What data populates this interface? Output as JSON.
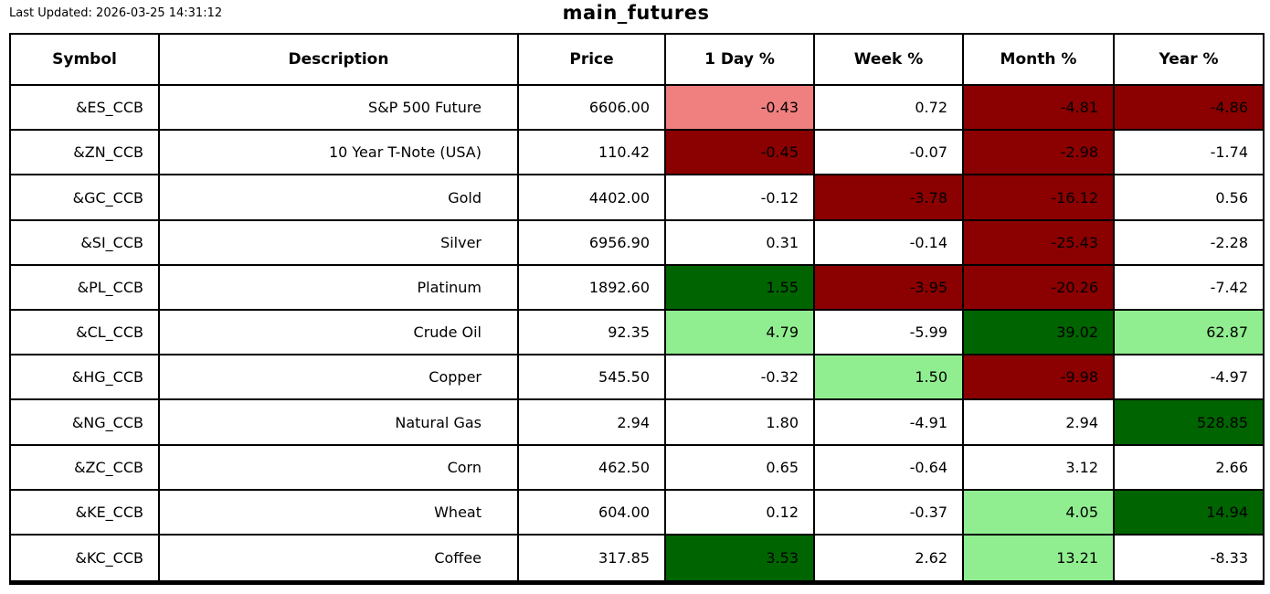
{
  "header": {
    "last_updated": "Last Updated: 2026-03-25 14:31:12",
    "title": "main_futures"
  },
  "chart_data": {
    "type": "table",
    "title": "main_futures",
    "columns": [
      "Symbol",
      "Description",
      "Price",
      "1 Day %",
      "Week %",
      "Month %",
      "Year %"
    ],
    "colors": {
      "strong_gain": "#006400",
      "mild_gain": "#90EE90",
      "mild_loss": "#F08080",
      "strong_loss": "#8B0000",
      "neutral": "#FFFFFF"
    },
    "rows": [
      {
        "symbol": "&ES_CCB",
        "description": "S&P 500 Future",
        "price": "6606.00",
        "percents": [
          {
            "value": "-0.43",
            "bg": "#F08080"
          },
          {
            "value": "0.72",
            "bg": "#FFFFFF"
          },
          {
            "value": "-4.81",
            "bg": "#8B0000"
          },
          {
            "value": "-4.86",
            "bg": "#8B0000"
          }
        ]
      },
      {
        "symbol": "&ZN_CCB",
        "description": "10 Year T-Note (USA)",
        "price": "110.42",
        "percents": [
          {
            "value": "-0.45",
            "bg": "#8B0000"
          },
          {
            "value": "-0.07",
            "bg": "#FFFFFF"
          },
          {
            "value": "-2.98",
            "bg": "#8B0000"
          },
          {
            "value": "-1.74",
            "bg": "#FFFFFF"
          }
        ]
      },
      {
        "symbol": "&GC_CCB",
        "description": "Gold",
        "price": "4402.00",
        "percents": [
          {
            "value": "-0.12",
            "bg": "#FFFFFF"
          },
          {
            "value": "-3.78",
            "bg": "#8B0000"
          },
          {
            "value": "-16.12",
            "bg": "#8B0000"
          },
          {
            "value": "0.56",
            "bg": "#FFFFFF"
          }
        ]
      },
      {
        "symbol": "&SI_CCB",
        "description": "Silver",
        "price": "6956.90",
        "percents": [
          {
            "value": "0.31",
            "bg": "#FFFFFF"
          },
          {
            "value": "-0.14",
            "bg": "#FFFFFF"
          },
          {
            "value": "-25.43",
            "bg": "#8B0000"
          },
          {
            "value": "-2.28",
            "bg": "#FFFFFF"
          }
        ]
      },
      {
        "symbol": "&PL_CCB",
        "description": "Platinum",
        "price": "1892.60",
        "percents": [
          {
            "value": "1.55",
            "bg": "#006400"
          },
          {
            "value": "-3.95",
            "bg": "#8B0000"
          },
          {
            "value": "-20.26",
            "bg": "#8B0000"
          },
          {
            "value": "-7.42",
            "bg": "#FFFFFF"
          }
        ]
      },
      {
        "symbol": "&CL_CCB",
        "description": "Crude Oil",
        "price": "92.35",
        "percents": [
          {
            "value": "4.79",
            "bg": "#90EE90"
          },
          {
            "value": "-5.99",
            "bg": "#FFFFFF"
          },
          {
            "value": "39.02",
            "bg": "#006400"
          },
          {
            "value": "62.87",
            "bg": "#90EE90"
          }
        ]
      },
      {
        "symbol": "&HG_CCB",
        "description": "Copper",
        "price": "545.50",
        "percents": [
          {
            "value": "-0.32",
            "bg": "#FFFFFF"
          },
          {
            "value": "1.50",
            "bg": "#90EE90"
          },
          {
            "value": "-9.98",
            "bg": "#8B0000"
          },
          {
            "value": "-4.97",
            "bg": "#FFFFFF"
          }
        ]
      },
      {
        "symbol": "&NG_CCB",
        "description": "Natural Gas",
        "price": "2.94",
        "percents": [
          {
            "value": "1.80",
            "bg": "#FFFFFF"
          },
          {
            "value": "-4.91",
            "bg": "#FFFFFF"
          },
          {
            "value": "2.94",
            "bg": "#FFFFFF"
          },
          {
            "value": "528.85",
            "bg": "#006400"
          }
        ]
      },
      {
        "symbol": "&ZC_CCB",
        "description": "Corn",
        "price": "462.50",
        "percents": [
          {
            "value": "0.65",
            "bg": "#FFFFFF"
          },
          {
            "value": "-0.64",
            "bg": "#FFFFFF"
          },
          {
            "value": "3.12",
            "bg": "#FFFFFF"
          },
          {
            "value": "2.66",
            "bg": "#FFFFFF"
          }
        ]
      },
      {
        "symbol": "&KE_CCB",
        "description": "Wheat",
        "price": "604.00",
        "percents": [
          {
            "value": "0.12",
            "bg": "#FFFFFF"
          },
          {
            "value": "-0.37",
            "bg": "#FFFFFF"
          },
          {
            "value": "4.05",
            "bg": "#90EE90"
          },
          {
            "value": "14.94",
            "bg": "#006400"
          }
        ]
      },
      {
        "symbol": "&KC_CCB",
        "description": "Coffee",
        "price": "317.85",
        "percents": [
          {
            "value": "3.53",
            "bg": "#006400"
          },
          {
            "value": "2.62",
            "bg": "#FFFFFF"
          },
          {
            "value": "13.21",
            "bg": "#90EE90"
          },
          {
            "value": "-8.33",
            "bg": "#FFFFFF"
          }
        ]
      }
    ]
  }
}
